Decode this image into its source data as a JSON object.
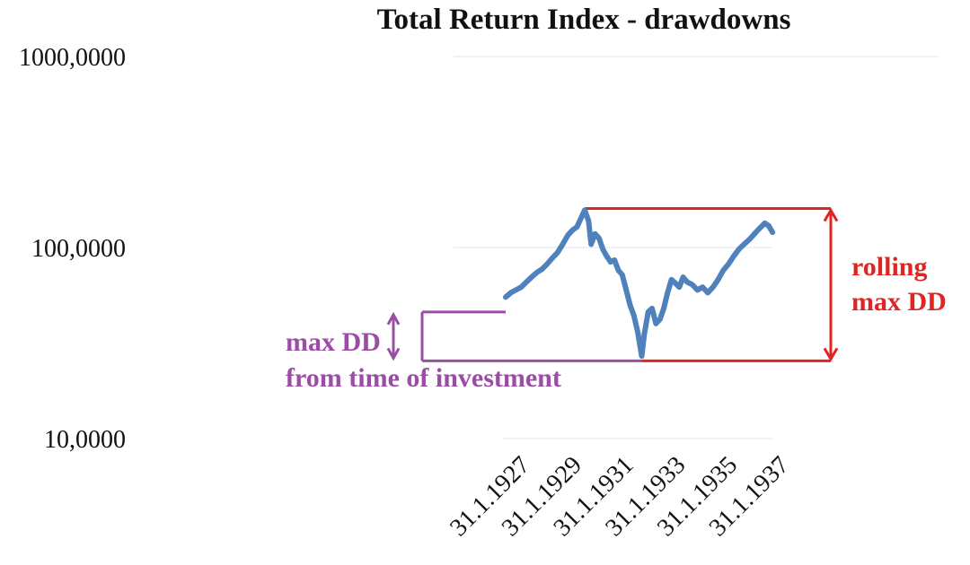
{
  "chart_data": {
    "type": "line",
    "title": "Total Return Index  - drawdowns",
    "xlabel": "",
    "ylabel": "",
    "y_scale": "log",
    "ylim": [
      10,
      1000
    ],
    "y_ticks": [
      "1000,0000",
      "100,0000",
      "10,0000"
    ],
    "y_tick_values": [
      1000,
      100,
      10
    ],
    "x_ticks": [
      "31.1.1927",
      "31.1.1929",
      "31.1.1931",
      "31.1.1933",
      "31.1.1935",
      "31.1.1937"
    ],
    "x_tick_values": [
      1927.08,
      1929.08,
      1931.08,
      1933.08,
      1935.08,
      1937.08
    ],
    "xlim": [
      1926,
      1938
    ],
    "grid": "horizontal",
    "line_color": "#4f81bd",
    "series": [
      {
        "values": [
          [
            1927.0,
            55
          ],
          [
            1927.2,
            58
          ],
          [
            1927.4,
            60
          ],
          [
            1927.6,
            62
          ],
          [
            1927.8,
            66
          ],
          [
            1928.0,
            70
          ],
          [
            1928.2,
            74
          ],
          [
            1928.4,
            77
          ],
          [
            1928.6,
            82
          ],
          [
            1928.8,
            88
          ],
          [
            1929.0,
            94
          ],
          [
            1929.2,
            104
          ],
          [
            1929.4,
            116
          ],
          [
            1929.6,
            124
          ],
          [
            1929.75,
            128
          ],
          [
            1929.9,
            142
          ],
          [
            1930.05,
            157
          ],
          [
            1930.2,
            138
          ],
          [
            1930.3,
            104
          ],
          [
            1930.45,
            118
          ],
          [
            1930.6,
            112
          ],
          [
            1930.75,
            98
          ],
          [
            1930.9,
            90
          ],
          [
            1931.05,
            84
          ],
          [
            1931.2,
            86
          ],
          [
            1931.35,
            76
          ],
          [
            1931.5,
            72
          ],
          [
            1931.65,
            60
          ],
          [
            1931.8,
            50
          ],
          [
            1931.95,
            44
          ],
          [
            1932.1,
            36
          ],
          [
            1932.25,
            27
          ],
          [
            1932.35,
            35
          ],
          [
            1932.5,
            46
          ],
          [
            1932.65,
            48
          ],
          [
            1932.8,
            40
          ],
          [
            1932.95,
            42
          ],
          [
            1933.1,
            48
          ],
          [
            1933.25,
            58
          ],
          [
            1933.4,
            68
          ],
          [
            1933.55,
            65
          ],
          [
            1933.7,
            62
          ],
          [
            1933.85,
            70
          ],
          [
            1934.0,
            66
          ],
          [
            1934.2,
            64
          ],
          [
            1934.4,
            60
          ],
          [
            1934.6,
            62
          ],
          [
            1934.8,
            58
          ],
          [
            1935.0,
            62
          ],
          [
            1935.2,
            68
          ],
          [
            1935.4,
            76
          ],
          [
            1935.6,
            82
          ],
          [
            1935.8,
            90
          ],
          [
            1936.0,
            98
          ],
          [
            1936.2,
            104
          ],
          [
            1936.4,
            110
          ],
          [
            1936.6,
            118
          ],
          [
            1936.8,
            126
          ],
          [
            1937.0,
            134
          ],
          [
            1937.15,
            130
          ],
          [
            1937.3,
            120
          ]
        ]
      }
    ],
    "annotations": {
      "max_dd_label_1": "max DD",
      "max_dd_label_2": "from time of investment",
      "max_dd_color": "#9b4da6",
      "rolling_label_1": "rolling",
      "rolling_label_2": "max DD",
      "rolling_color": "#e02424",
      "start_value": 46,
      "trough_value": 25.5,
      "peak_value": 160
    }
  }
}
